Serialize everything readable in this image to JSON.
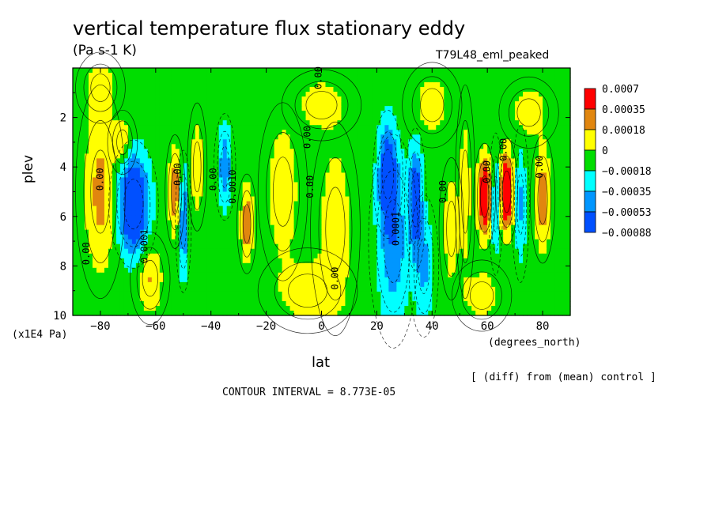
{
  "chart_data": {
    "type": "heatmap",
    "title": "vertical temperature flux stationary eddy",
    "units": "(Pa s-1 K)",
    "run_label": "T79L48_eml_peaked",
    "xlabel": "lat",
    "x_unit_label": "(degrees_north)",
    "ylabel": "plev",
    "y_unit_label": "(x1E4 Pa)",
    "note": "[ (diff) from (mean) control ]",
    "contour_interval_text": "CONTOUR INTERVAL = 8.773E-05",
    "xlim": [
      -90,
      90
    ],
    "ylim": [
      10,
      0
    ],
    "x_ticks": [
      -80,
      -60,
      -40,
      -20,
      0,
      20,
      40,
      60,
      80
    ],
    "y_ticks": [
      2,
      4,
      6,
      8,
      10
    ],
    "grid": false,
    "legend_placement": "right",
    "colorbar": [
      {
        "label": "0.0007",
        "color": "#ff0000"
      },
      {
        "label": "0.00035",
        "color": "#e1860f"
      },
      {
        "label": "0.00018",
        "color": "#ffff00"
      },
      {
        "label": "0",
        "color": "#00dd00"
      },
      {
        "label": "−0.00018",
        "color": "#00ffff"
      },
      {
        "label": "−0.00035",
        "color": "#0096ff"
      },
      {
        "label": "−0.00053",
        "color": "#0050ff"
      },
      {
        "label": "−0.00088",
        "color": ""
      }
    ],
    "levels": [
      -0.00088,
      -0.00053,
      -0.00035,
      -0.00018,
      0,
      0.00018,
      0.00035,
      0.0007
    ],
    "background_value": -0.0001,
    "features": [
      {
        "lat": -68,
        "plev": 5.5,
        "value": -0.0009,
        "lat_width": 5,
        "plev_width": 1.8
      },
      {
        "lat": -62,
        "plev": 8.5,
        "value": 0.0003,
        "lat_width": 4,
        "plev_width": 1.3
      },
      {
        "lat": -72,
        "plev": 3.0,
        "value": 0.00025,
        "lat_width": 3,
        "plev_width": 0.9
      },
      {
        "lat": -80,
        "plev": 5.0,
        "value": 0.00035,
        "lat_width": 5,
        "plev_width": 3.0
      },
      {
        "lat": -53,
        "plev": 5.0,
        "value": 0.00045,
        "lat_width": 2,
        "plev_width": 1.6
      },
      {
        "lat": -50,
        "plev": 6.2,
        "value": -0.00045,
        "lat_width": 1.6,
        "plev_width": 2.0
      },
      {
        "lat": -45,
        "plev": 4.0,
        "value": 0.00025,
        "lat_width": 2,
        "plev_width": 1.8
      },
      {
        "lat": -35,
        "plev": 4.0,
        "value": -0.0004,
        "lat_width": 2.2,
        "plev_width": 1.5
      },
      {
        "lat": -27,
        "plev": 6.3,
        "value": 0.00045,
        "lat_width": 2,
        "plev_width": 1.4
      },
      {
        "lat": -14,
        "plev": 5.0,
        "value": 0.00025,
        "lat_width": 5,
        "plev_width": 2.5
      },
      {
        "lat": 5,
        "plev": 6.5,
        "value": 0.00025,
        "lat_width": 5,
        "plev_width": 3.0
      },
      {
        "lat": 0,
        "plev": 1.5,
        "value": 0.0002,
        "lat_width": 8,
        "plev_width": 1.0
      },
      {
        "lat": 24,
        "plev": 4.3,
        "value": -0.0007,
        "lat_width": 3,
        "plev_width": 1.8
      },
      {
        "lat": 26,
        "plev": 7.0,
        "value": -0.0004,
        "lat_width": 5,
        "plev_width": 3.0
      },
      {
        "lat": 34,
        "plev": 5.3,
        "value": -0.00065,
        "lat_width": 2.2,
        "plev_width": 2.0
      },
      {
        "lat": 37,
        "plev": 8.0,
        "value": -0.0003,
        "lat_width": 3,
        "plev_width": 2.0
      },
      {
        "lat": 47,
        "plev": 6.5,
        "value": 0.00025,
        "lat_width": 2.5,
        "plev_width": 2.0
      },
      {
        "lat": 52,
        "plev": 5.0,
        "value": 0.0002,
        "lat_width": 2,
        "plev_width": 3.0
      },
      {
        "lat": 59,
        "plev": 5.2,
        "value": 0.0008,
        "lat_width": 2.2,
        "plev_width": 1.5
      },
      {
        "lat": 63,
        "plev": 5.5,
        "value": -0.0003,
        "lat_width": 1.4,
        "plev_width": 2.0
      },
      {
        "lat": 67,
        "plev": 5.0,
        "value": 0.0008,
        "lat_width": 2.2,
        "plev_width": 1.5
      },
      {
        "lat": 72,
        "plev": 5.5,
        "value": -0.00028,
        "lat_width": 1.8,
        "plev_width": 2.2
      },
      {
        "lat": 80,
        "plev": 5.3,
        "value": 0.00045,
        "lat_width": 2.5,
        "plev_width": 1.8
      },
      {
        "lat": 75,
        "plev": 1.8,
        "value": 0.00022,
        "lat_width": 6,
        "plev_width": 1.0
      },
      {
        "lat": -80,
        "plev": 0.8,
        "value": 0.0002,
        "lat_width": 5,
        "plev_width": 1.0
      },
      {
        "lat": 40,
        "plev": 1.5,
        "value": 0.0002,
        "lat_width": 6,
        "plev_width": 1.2
      },
      {
        "lat": -5,
        "plev": 9.0,
        "value": 0.00022,
        "lat_width": 10,
        "plev_width": 1.2
      },
      {
        "lat": 58,
        "plev": 9.2,
        "value": 0.0002,
        "lat_width": 6,
        "plev_width": 1.0
      }
    ],
    "contour_labels": [
      {
        "text": "0.00",
        "lat": -84,
        "plev": 7.5
      },
      {
        "text": "0.00",
        "lat": -79,
        "plev": 4.5
      },
      {
        "text": "0.0001",
        "lat": -63,
        "plev": 7.2
      },
      {
        "text": "0.00",
        "lat": -51,
        "plev": 4.3
      },
      {
        "text": "0.00",
        "lat": -38,
        "plev": 4.5
      },
      {
        "text": "0.0010",
        "lat": -31,
        "plev": 4.8
      },
      {
        "text": "0.00",
        "lat": -4,
        "plev": 2.8
      },
      {
        "text": "0.00",
        "lat": -3,
        "plev": 4.8
      },
      {
        "text": "0.00",
        "lat": 6,
        "plev": 8.5
      },
      {
        "text": "0.00",
        "lat": 0,
        "plev": 0.4
      },
      {
        "text": "0.0001",
        "lat": 28,
        "plev": 6.5
      },
      {
        "text": "0.00",
        "lat": 45,
        "plev": 5.0
      },
      {
        "text": "0.00",
        "lat": 61,
        "plev": 4.2
      },
      {
        "text": "0.00",
        "lat": 67,
        "plev": 3.3
      },
      {
        "text": "0.00",
        "lat": 80,
        "plev": 4.0
      }
    ]
  }
}
